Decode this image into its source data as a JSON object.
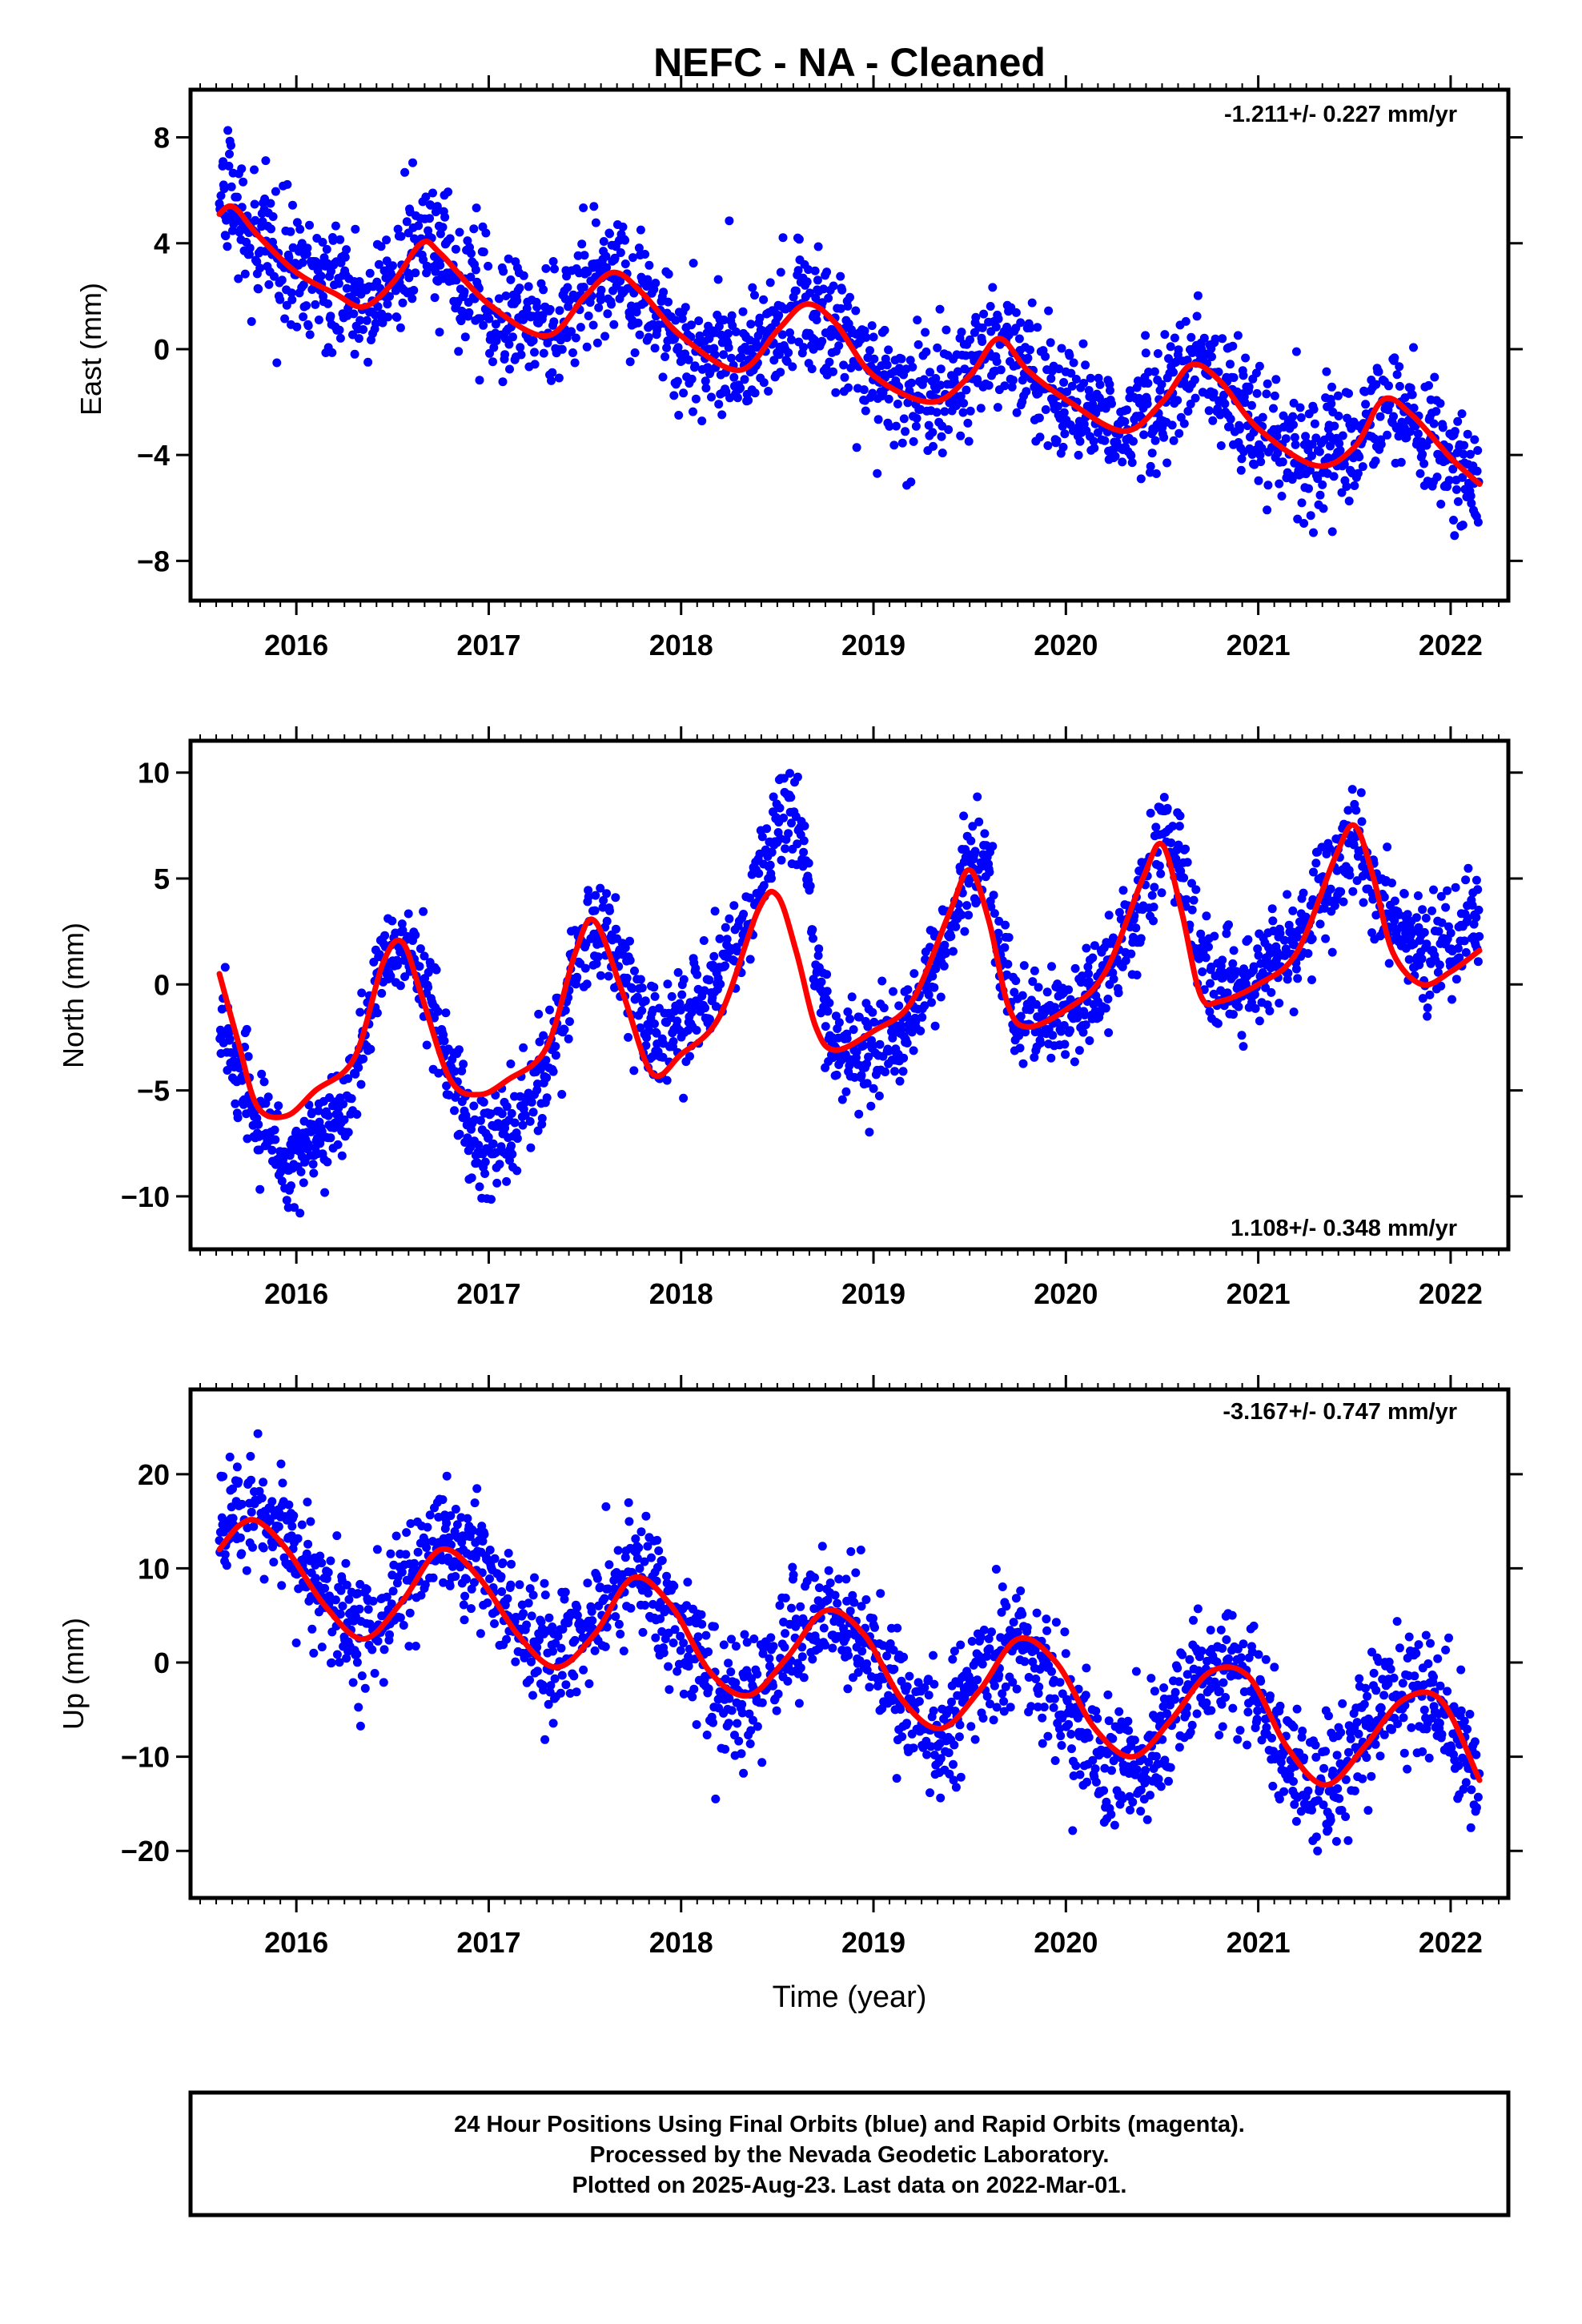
{
  "title": "NEFC  - NA - Cleaned",
  "x_axis_label": "Time (year)",
  "caption": [
    "24 Hour Positions Using Final Orbits (blue) and Rapid Orbits (magenta).",
    "Processed by the Nevada Geodetic Laboratory.",
    "Plotted on 2025-Aug-23. Last data on 2022-Mar-01."
  ],
  "colors": {
    "points": "#0000ff",
    "fit": "#ff0000",
    "frame": "#000000"
  },
  "chart_data": [
    {
      "type": "scatter",
      "title": "",
      "xlabel": "",
      "ylabel": "East (mm)",
      "rate": "-1.211+/- 0.227 mm/yr",
      "rate_position": "top-right",
      "xlim": [
        2015.45,
        2022.3
      ],
      "ylim": [
        -9.5,
        9.8
      ],
      "xticks": [
        2016,
        2017,
        2018,
        2019,
        2020,
        2021,
        2022
      ],
      "yticks": [
        8,
        4,
        0,
        -4,
        -8
      ],
      "series": [
        {
          "x": [
            2015.6,
            2015.65,
            2015.7,
            2015.8,
            2016.0,
            2016.2,
            2016.35,
            2016.5,
            2016.65,
            2016.75,
            2017.0,
            2017.3,
            2017.5,
            2017.65,
            2017.8,
            2018.0,
            2018.3,
            2018.5,
            2018.65,
            2018.8,
            2019.0,
            2019.3,
            2019.5,
            2019.65,
            2019.8,
            2020.0,
            2020.3,
            2020.5,
            2020.65,
            2020.8,
            2021.0,
            2021.3,
            2021.5,
            2021.65,
            2021.8,
            2022.0,
            2022.15
          ],
          "y": [
            5.5,
            5.6,
            5.0,
            4.0,
            3.0,
            2.1,
            1.6,
            2.5,
            4.1,
            3.8,
            1.6,
            0.6,
            2.3,
            3.0,
            2.2,
            0.3,
            -0.8,
            0.6,
            1.7,
            0.9,
            -1.0,
            -1.9,
            -0.9,
            0.5,
            -0.9,
            -1.8,
            -3.0,
            -2.0,
            -0.7,
            -1.3,
            -3.0,
            -4.3,
            -3.6,
            -2.0,
            -2.6,
            -4.2,
            -5.2
          ]
        }
      ],
      "fit": {
        "x": [
          2015.6,
          2015.65,
          2015.7,
          2015.8,
          2016.0,
          2016.2,
          2016.35,
          2016.5,
          2016.65,
          2016.75,
          2017.0,
          2017.3,
          2017.5,
          2017.65,
          2017.8,
          2018.0,
          2018.3,
          2018.5,
          2018.65,
          2018.8,
          2019.0,
          2019.3,
          2019.5,
          2019.65,
          2019.8,
          2020.0,
          2020.3,
          2020.5,
          2020.65,
          2020.8,
          2021.0,
          2021.3,
          2021.5,
          2021.65,
          2021.8,
          2022.0,
          2022.15
        ],
        "y": [
          5.1,
          5.4,
          5.2,
          4.3,
          2.9,
          2.1,
          1.6,
          2.5,
          4.0,
          3.6,
          1.7,
          0.5,
          2.0,
          2.9,
          2.1,
          0.5,
          -0.8,
          0.7,
          1.7,
          1.0,
          -1.0,
          -2.0,
          -1.0,
          0.4,
          -0.8,
          -1.9,
          -3.1,
          -2.0,
          -0.6,
          -1.2,
          -3.0,
          -4.4,
          -3.7,
          -1.9,
          -2.5,
          -4.1,
          -5.1
        ]
      }
    },
    {
      "type": "scatter",
      "title": "",
      "xlabel": "",
      "ylabel": "North (mm)",
      "rate": "1.108+/- 0.348 mm/yr",
      "rate_position": "bottom-right",
      "xlim": [
        2015.45,
        2022.3
      ],
      "ylim": [
        -12.5,
        11.5
      ],
      "xticks": [
        2016,
        2017,
        2018,
        2019,
        2020,
        2021,
        2022
      ],
      "yticks": [
        10,
        5,
        0,
        -5,
        -10
      ],
      "series": [
        {
          "x": [
            2015.6,
            2015.7,
            2015.8,
            2015.95,
            2016.1,
            2016.3,
            2016.45,
            2016.55,
            2016.65,
            2016.8,
            2016.95,
            2017.1,
            2017.3,
            2017.45,
            2017.55,
            2017.7,
            2017.85,
            2018.0,
            2018.2,
            2018.4,
            2018.5,
            2018.6,
            2018.7,
            2018.8,
            2019.0,
            2019.2,
            2019.4,
            2019.5,
            2019.6,
            2019.7,
            2019.8,
            2020.0,
            2020.2,
            2020.4,
            2020.5,
            2020.6,
            2020.7,
            2020.8,
            2021.0,
            2021.2,
            2021.4,
            2021.5,
            2021.6,
            2021.7,
            2021.85,
            2022.0,
            2022.15
          ],
          "y": [
            -1.5,
            -4.0,
            -6.5,
            -8.5,
            -7.5,
            -4.5,
            1.0,
            2.0,
            0.5,
            -4.0,
            -7.5,
            -7.0,
            -4.0,
            1.0,
            3.0,
            1.0,
            -2.5,
            -2.0,
            0.5,
            4.5,
            7.5,
            8.5,
            1.0,
            -3.0,
            -3.5,
            -1.5,
            2.5,
            6.0,
            5.0,
            -0.5,
            -2.0,
            -1.5,
            0.5,
            4.0,
            7.0,
            5.5,
            1.0,
            0.0,
            0.5,
            2.0,
            5.5,
            6.5,
            4.5,
            3.0,
            1.5,
            2.0,
            3.5
          ]
        }
      ],
      "fit": {
        "x": [
          2015.6,
          2015.7,
          2015.8,
          2015.95,
          2016.1,
          2016.3,
          2016.45,
          2016.55,
          2016.65,
          2016.8,
          2016.95,
          2017.1,
          2017.3,
          2017.45,
          2017.55,
          2017.7,
          2017.85,
          2018.0,
          2018.2,
          2018.4,
          2018.5,
          2018.6,
          2018.7,
          2018.8,
          2019.0,
          2019.2,
          2019.4,
          2019.5,
          2019.6,
          2019.7,
          2019.8,
          2020.0,
          2020.2,
          2020.4,
          2020.5,
          2020.6,
          2020.7,
          2020.8,
          2021.0,
          2021.2,
          2021.4,
          2021.5,
          2021.6,
          2021.7,
          2021.85,
          2022.0,
          2022.15
        ],
        "y": [
          0.5,
          -2.8,
          -5.8,
          -6.2,
          -5.0,
          -3.5,
          1.0,
          2.0,
          -0.5,
          -4.5,
          -5.2,
          -4.5,
          -3.0,
          1.5,
          3.0,
          -0.5,
          -4.2,
          -3.3,
          -1.5,
          3.5,
          4.2,
          1.5,
          -2.0,
          -3.1,
          -2.2,
          -0.8,
          3.5,
          5.4,
          3.0,
          -1.0,
          -2.0,
          -1.2,
          0.5,
          5.0,
          6.6,
          3.5,
          -0.5,
          -0.8,
          0.0,
          1.5,
          6.0,
          7.5,
          5.0,
          1.5,
          0.0,
          0.6,
          1.6
        ]
      }
    },
    {
      "type": "scatter",
      "title": "",
      "xlabel": "Time (year)",
      "ylabel": "Up (mm)",
      "rate": "-3.167+/- 0.747 mm/yr",
      "rate_position": "top-right",
      "xlim": [
        2015.45,
        2022.3
      ],
      "ylim": [
        -25,
        29
      ],
      "xticks": [
        2016,
        2017,
        2018,
        2019,
        2020,
        2021,
        2022
      ],
      "yticks": [
        20,
        10,
        0,
        -10,
        -20
      ],
      "series": [
        {
          "x": [
            2015.6,
            2015.7,
            2015.8,
            2015.95,
            2016.15,
            2016.35,
            2016.55,
            2016.75,
            2016.95,
            2017.15,
            2017.35,
            2017.55,
            2017.75,
            2017.95,
            2018.15,
            2018.35,
            2018.55,
            2018.75,
            2018.95,
            2019.15,
            2019.35,
            2019.55,
            2019.75,
            2019.95,
            2020.15,
            2020.35,
            2020.55,
            2020.75,
            2020.95,
            2021.15,
            2021.35,
            2021.55,
            2021.75,
            2021.95,
            2022.15
          ],
          "y": [
            15,
            17,
            17,
            13,
            7,
            3,
            9,
            13,
            11,
            4,
            0,
            4,
            10,
            5,
            -3,
            -4,
            2,
            6,
            3,
            -4,
            -8,
            -1,
            3,
            -3,
            -10,
            -12,
            -5,
            0,
            -2,
            -11,
            -14,
            -7,
            -3,
            -5,
            -12
          ]
        }
      ],
      "fit": {
        "x": [
          2015.6,
          2015.7,
          2015.8,
          2015.95,
          2016.15,
          2016.35,
          2016.55,
          2016.75,
          2016.95,
          2017.15,
          2017.35,
          2017.55,
          2017.75,
          2017.95,
          2018.15,
          2018.35,
          2018.55,
          2018.75,
          2018.95,
          2019.15,
          2019.35,
          2019.55,
          2019.75,
          2019.95,
          2020.15,
          2020.35,
          2020.55,
          2020.75,
          2020.95,
          2021.15,
          2021.35,
          2021.55,
          2021.75,
          2021.95,
          2022.15
        ],
        "y": [
          12,
          14.5,
          15,
          12,
          6,
          2.5,
          6.5,
          12,
          9,
          3,
          -0.5,
          3,
          9,
          6,
          -1,
          -3.5,
          0.5,
          5.5,
          3,
          -4,
          -7,
          -3,
          2.5,
          0,
          -7,
          -10,
          -6,
          -1,
          -1.5,
          -9,
          -13,
          -9,
          -4,
          -4,
          -12.5
        ]
      }
    }
  ]
}
